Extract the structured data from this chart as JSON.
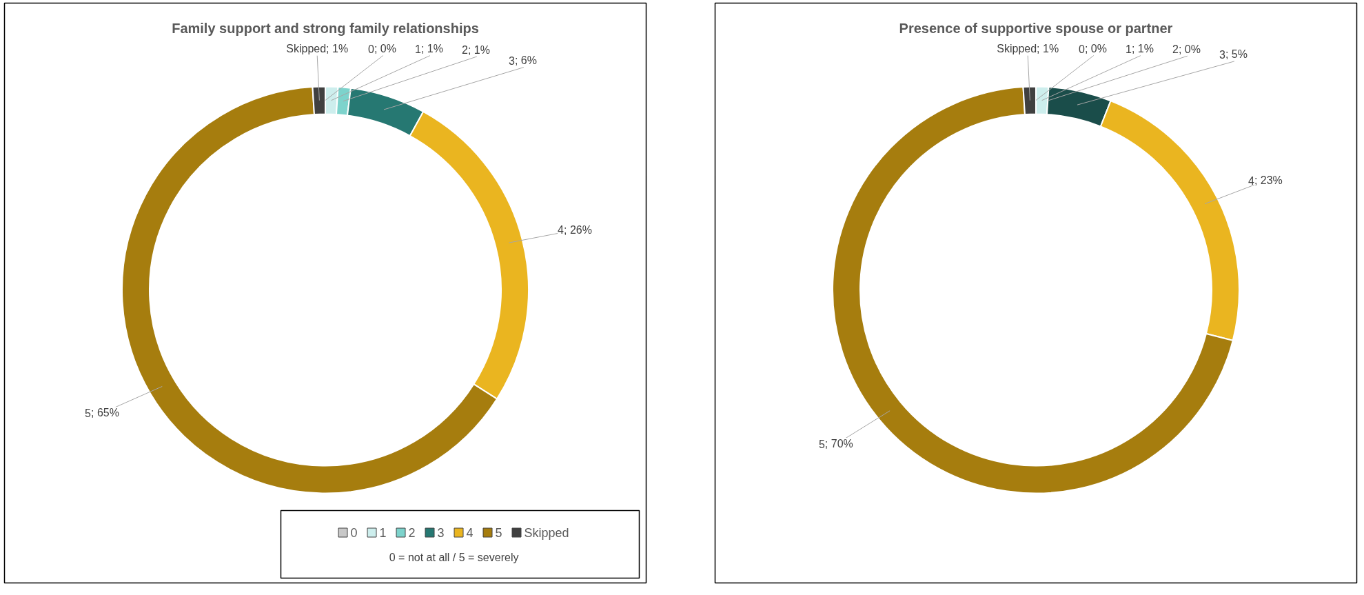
{
  "chart_data": [
    {
      "type": "donut",
      "title": "Family support and strong family relationships",
      "categories": [
        "0",
        "1",
        "2",
        "3",
        "4",
        "5",
        "Skipped"
      ],
      "values": [
        0,
        1,
        1,
        6,
        26,
        65,
        1
      ],
      "value_labels": [
        "; 0%",
        "; 1%",
        "; 1%",
        "; 6%",
        "; 26%",
        "; 65%",
        "; 1%"
      ],
      "colors": [
        "#c8c8c8",
        "#cdeeed",
        "#7dd3cc",
        "#267872",
        "#eab520",
        "#a67d0e",
        "#404040"
      ],
      "legend": "bottom",
      "annotations": [
        "0 = not at all   /   5 = severely"
      ]
    },
    {
      "type": "donut",
      "title": "Presence of supportive spouse or partner",
      "categories": [
        "0",
        "1",
        "2",
        "3",
        "4",
        "5",
        "Skipped"
      ],
      "values": [
        0,
        1,
        0,
        5,
        23,
        70,
        1
      ],
      "value_labels": [
        "; 0%",
        "; 1%",
        "; 0%",
        "; 5%",
        "; 23%",
        "; 70%",
        "; 1%"
      ],
      "colors": [
        "#c8c8c8",
        "#cdeeed",
        "#7dd3cc",
        "#1a4d4a",
        "#eab520",
        "#a67d0e",
        "#404040"
      ]
    }
  ]
}
